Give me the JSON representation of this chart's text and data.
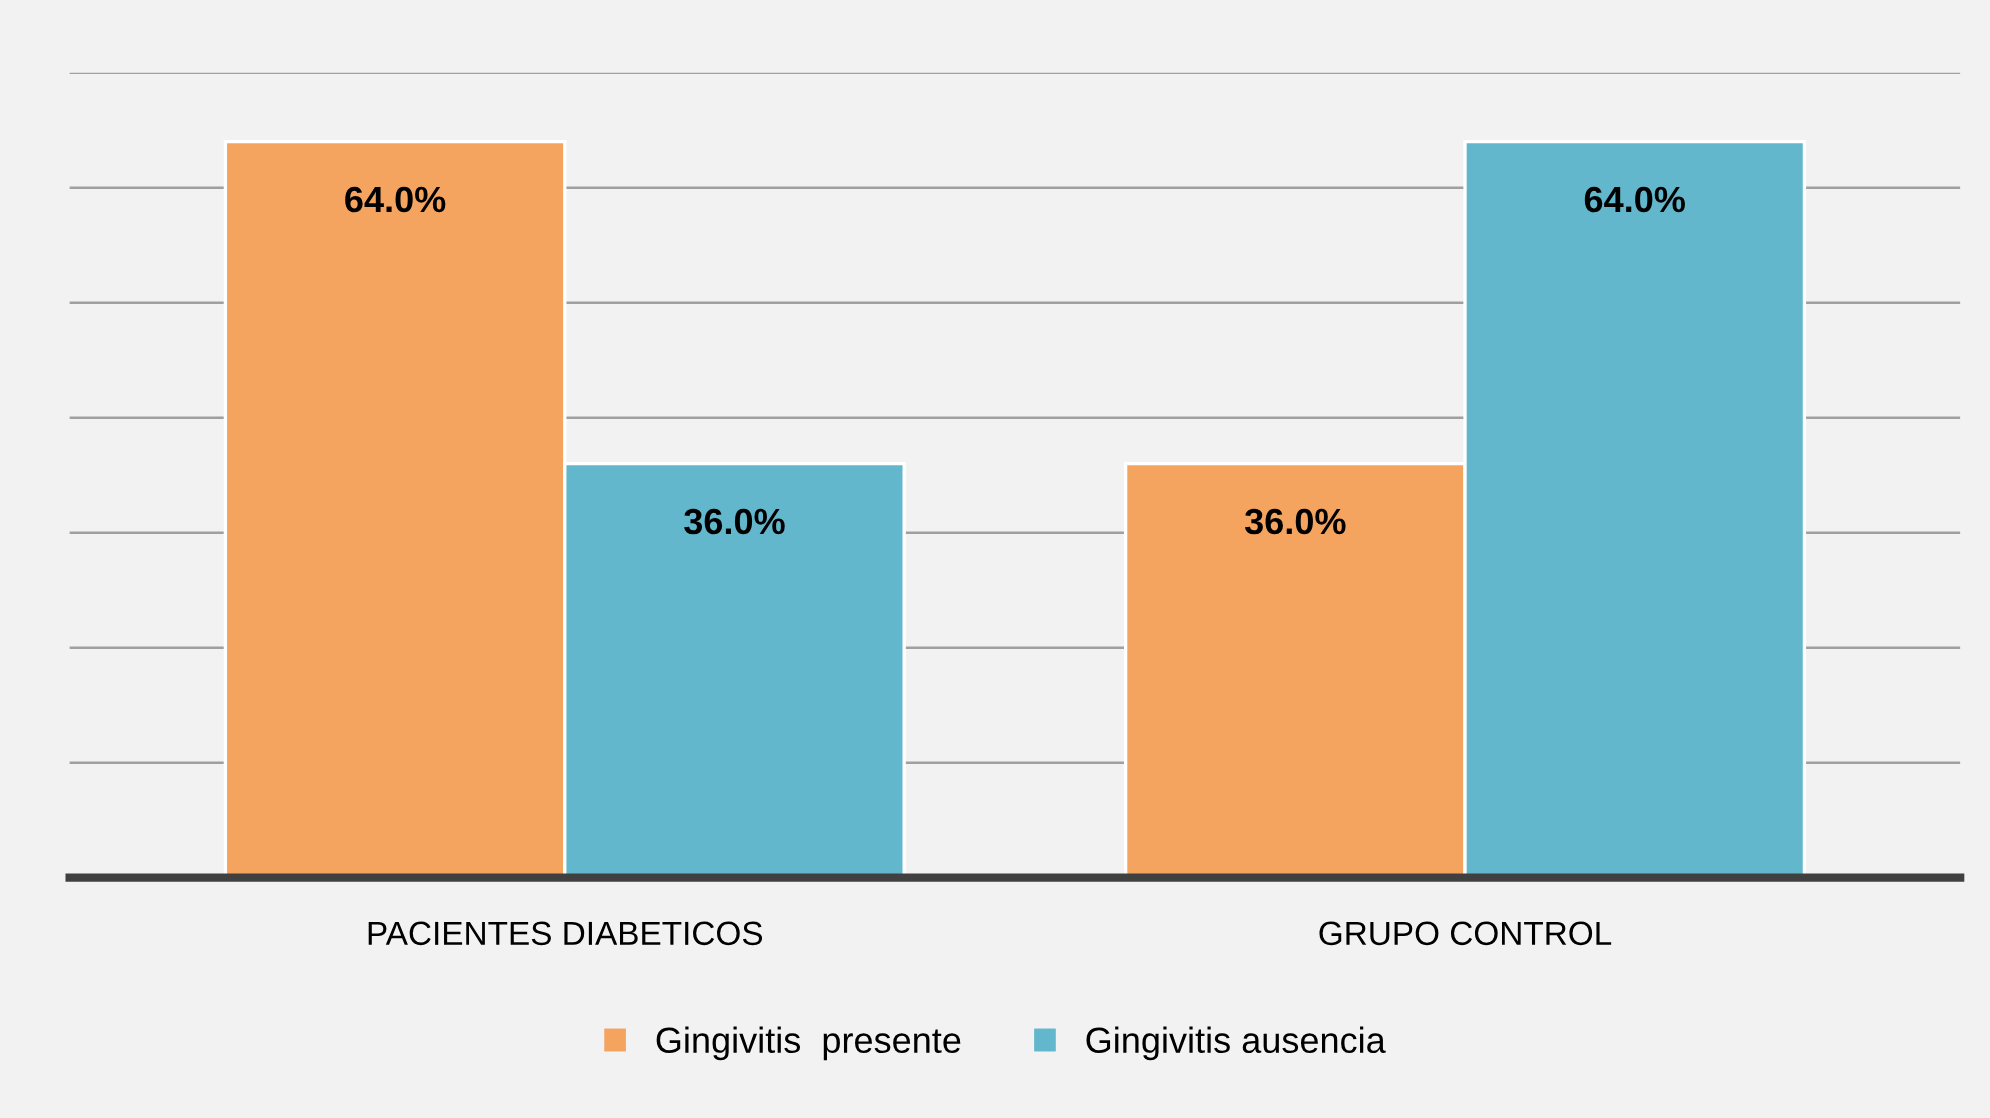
{
  "chart_data": {
    "type": "bar",
    "categories": [
      "PACIENTES DIABETICOS",
      "GRUPO CONTROL"
    ],
    "series": [
      {
        "name": "Gingivitis  presente",
        "color": "#f5a460",
        "values": [
          64.0,
          36.0
        ],
        "value_labels": [
          "64.0%",
          "36.0%"
        ]
      },
      {
        "name": "Gingivitis ausencia",
        "color": "#62b7cd",
        "values": [
          36.0,
          64.0
        ],
        "value_labels": [
          "36.0%",
          "64.0%"
        ]
      }
    ],
    "ylim": [
      0,
      70
    ],
    "yticks": [
      0,
      10,
      20,
      30,
      40,
      50,
      60,
      70
    ],
    "tick_labels": "x",
    "grid": "y",
    "legend": "bottom"
  }
}
